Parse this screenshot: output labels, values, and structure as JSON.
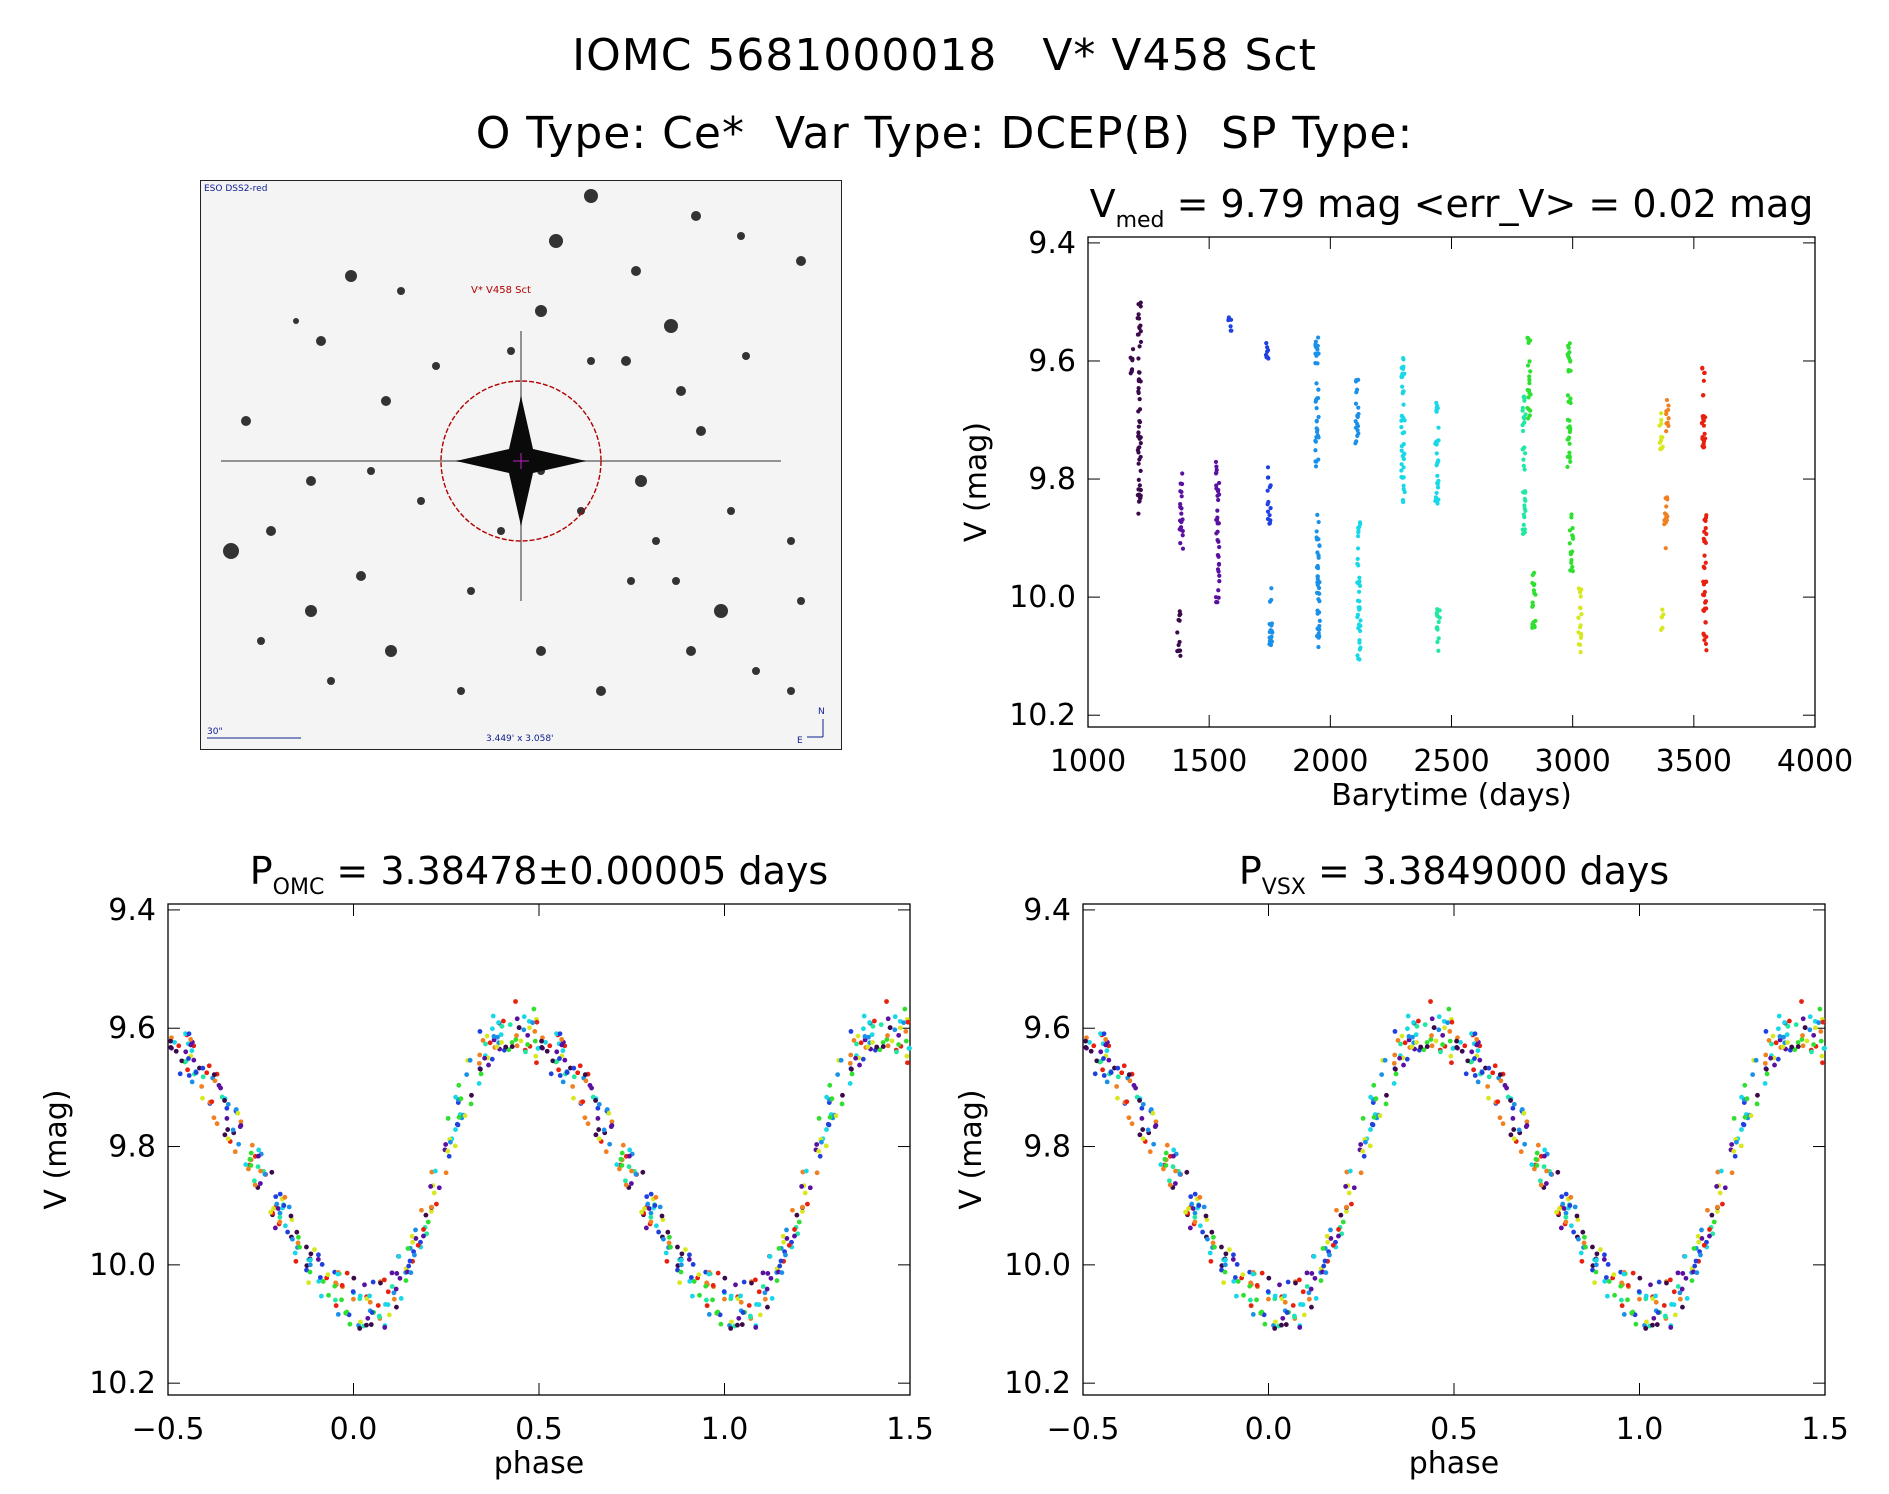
{
  "header": {
    "line1": "IOMC 5681000018   V* V458 Sct",
    "line2": "O Type: Ce*  Var Type: DCEP(B)  SP Type:"
  },
  "image_panel": {
    "survey": "ESO DSS2-red",
    "target": "V* V458 Sct",
    "scale": "30\"",
    "fov": "3.449' x 3.058'",
    "north": "N",
    "east": "E",
    "marker_color": "#b00000"
  },
  "colors": [
    "#3a0a4a",
    "#5a10a0",
    "#2040e0",
    "#1a90e8",
    "#18d8e8",
    "#20e8a0",
    "#30e030",
    "#d8e820",
    "#f08020",
    "#e82010"
  ],
  "chart_data": [
    {
      "type": "scatter",
      "id": "lightcurve",
      "title_main": "V",
      "title_sub": "med",
      "title_rest": " = 9.79 mag <err_V> = 0.02 mag",
      "xlabel": "Barytime (days)",
      "ylabel": "V (mag)",
      "xlim": [
        1000,
        4000
      ],
      "ylim": [
        10.22,
        9.39
      ],
      "xticks": [
        "1000",
        "1500",
        "2000",
        "2500",
        "3000",
        "3500",
        "4000"
      ],
      "xtick_vals": [
        1000,
        1500,
        2000,
        2500,
        3000,
        3500,
        4000
      ],
      "yticks": [
        "9.4",
        "9.6",
        "9.8",
        "10.0",
        "10.2"
      ],
      "ytick_vals": [
        9.4,
        9.6,
        9.8,
        10.0,
        10.2
      ],
      "segments": [
        {
          "x": 1180,
          "ymin": 9.58,
          "ymax": 9.63,
          "c": 0
        },
        {
          "x": 1212,
          "ymin": 9.5,
          "ymax": 9.86,
          "c": 0
        },
        {
          "x": 1375,
          "ymin": 10.02,
          "ymax": 10.1,
          "c": 0
        },
        {
          "x": 1385,
          "ymin": 9.78,
          "ymax": 9.92,
          "c": 1
        },
        {
          "x": 1535,
          "ymin": 9.77,
          "ymax": 10.01,
          "c": 1
        },
        {
          "x": 1585,
          "ymin": 9.52,
          "ymax": 9.55,
          "c": 2
        },
        {
          "x": 1740,
          "ymin": 9.55,
          "ymax": 9.6,
          "c": 2
        },
        {
          "x": 1748,
          "ymin": 9.78,
          "ymax": 9.88,
          "c": 2
        },
        {
          "x": 1755,
          "ymin": 9.98,
          "ymax": 10.09,
          "c": 3
        },
        {
          "x": 1945,
          "ymin": 9.56,
          "ymax": 9.78,
          "c": 3
        },
        {
          "x": 1950,
          "ymin": 9.85,
          "ymax": 10.1,
          "c": 3
        },
        {
          "x": 2110,
          "ymin": 9.62,
          "ymax": 9.74,
          "c": 3
        },
        {
          "x": 2118,
          "ymin": 9.87,
          "ymax": 10.11,
          "c": 4
        },
        {
          "x": 2300,
          "ymin": 9.58,
          "ymax": 9.84,
          "c": 4
        },
        {
          "x": 2440,
          "ymin": 9.67,
          "ymax": 9.85,
          "c": 4
        },
        {
          "x": 2445,
          "ymin": 10.02,
          "ymax": 10.1,
          "c": 5
        },
        {
          "x": 2800,
          "ymin": 9.66,
          "ymax": 9.9,
          "c": 5
        },
        {
          "x": 2820,
          "ymin": 9.56,
          "ymax": 9.7,
          "c": 6
        },
        {
          "x": 2840,
          "ymin": 9.95,
          "ymax": 10.06,
          "c": 6
        },
        {
          "x": 2985,
          "ymin": 9.57,
          "ymax": 9.79,
          "c": 6
        },
        {
          "x": 2995,
          "ymin": 9.86,
          "ymax": 9.96,
          "c": 6
        },
        {
          "x": 3030,
          "ymin": 9.98,
          "ymax": 10.1,
          "c": 7
        },
        {
          "x": 3365,
          "ymin": 9.67,
          "ymax": 9.75,
          "c": 7
        },
        {
          "x": 3370,
          "ymin": 10.02,
          "ymax": 10.06,
          "c": 7
        },
        {
          "x": 3385,
          "ymin": 9.82,
          "ymax": 9.92,
          "c": 8
        },
        {
          "x": 3390,
          "ymin": 9.66,
          "ymax": 9.72,
          "c": 8
        },
        {
          "x": 3540,
          "ymin": 9.61,
          "ymax": 9.76,
          "c": 9
        },
        {
          "x": 3545,
          "ymin": 9.86,
          "ymax": 10.09,
          "c": 9
        }
      ]
    },
    {
      "type": "scatter",
      "id": "phase_omc",
      "title_main": "P",
      "title_sub": "OMC",
      "title_rest": " = 3.38478±0.00005 days",
      "xlabel": "phase",
      "ylabel": "V (mag)",
      "xlim": [
        -0.5,
        1.5
      ],
      "ylim": [
        10.22,
        9.39
      ],
      "xticks": [
        "−0.5",
        "0.0",
        "0.5",
        "1.0",
        "1.5"
      ],
      "xtick_vals": [
        -0.5,
        0.0,
        0.5,
        1.0,
        1.5
      ],
      "yticks": [
        "9.4",
        "9.6",
        "9.8",
        "10.0",
        "10.2"
      ],
      "ytick_vals": [
        9.4,
        9.6,
        9.8,
        10.0,
        10.2
      ],
      "curve": {
        "mean": 9.83,
        "amp": 0.21,
        "max_phase": 0.42,
        "min_phase": 0.05
      }
    },
    {
      "type": "scatter",
      "id": "phase_vsx",
      "title_main": "P",
      "title_sub": "VSX",
      "title_rest": " = 3.3849000 days",
      "xlabel": "phase",
      "ylabel": "V (mag)",
      "xlim": [
        -0.5,
        1.5
      ],
      "ylim": [
        10.22,
        9.39
      ],
      "xticks": [
        "−0.5",
        "0.0",
        "0.5",
        "1.0",
        "1.5"
      ],
      "xtick_vals": [
        -0.5,
        0.0,
        0.5,
        1.0,
        1.5
      ],
      "yticks": [
        "9.4",
        "9.6",
        "9.8",
        "10.0",
        "10.2"
      ],
      "ytick_vals": [
        9.4,
        9.6,
        9.8,
        10.0,
        10.2
      ],
      "curve": {
        "mean": 9.83,
        "amp": 0.21,
        "max_phase": 0.42,
        "min_phase": 0.05
      }
    }
  ]
}
